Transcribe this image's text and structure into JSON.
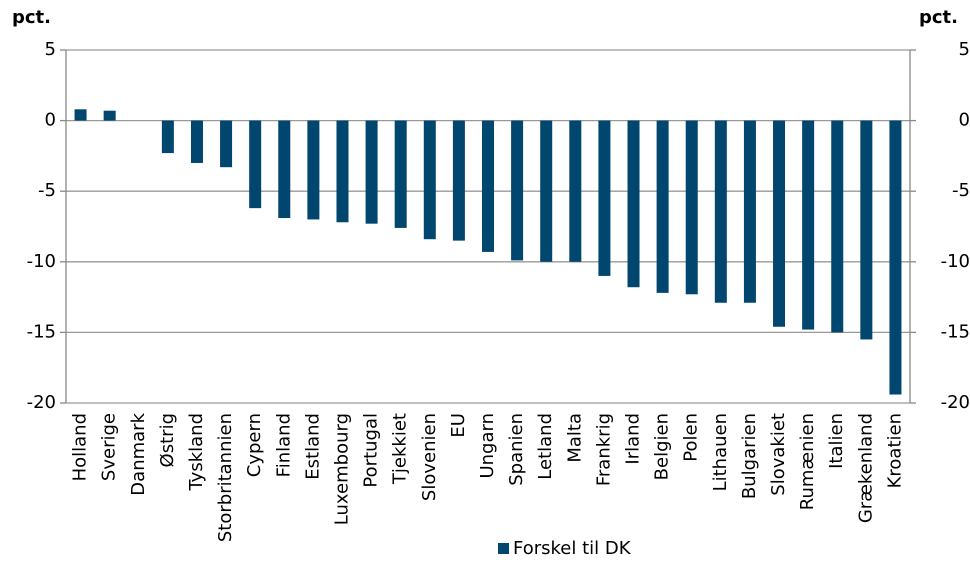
{
  "chart_data": {
    "type": "bar",
    "y_label": "pct.",
    "y2_label": "pct.",
    "categories": [
      "Holland",
      "Sverige",
      "Danmark",
      "Østrig",
      "Tyskland",
      "Storbritannien",
      "Cypern",
      "Finland",
      "Estland",
      "Luxembourg",
      "Portugal",
      "Tjekkiet",
      "Slovenien",
      "EU",
      "Ungarn",
      "Spanien",
      "Letland",
      "Malta",
      "Frankrig",
      "Irland",
      "Belgien",
      "Polen",
      "Lithauen",
      "Bulgarien",
      "Slovakiet",
      "Rumænien",
      "Italien",
      "Grækenland",
      "Kroatien"
    ],
    "series": [
      {
        "name": "Forskel til DK",
        "color": "#00466e",
        "values": [
          0.8,
          0.7,
          0,
          -2.3,
          -3.0,
          -3.3,
          -6.2,
          -6.9,
          -7.0,
          -7.2,
          -7.3,
          -7.6,
          -8.4,
          -8.5,
          -9.3,
          -9.9,
          -10.0,
          -10.0,
          -11.0,
          -11.8,
          -12.2,
          -12.3,
          -12.9,
          -12.9,
          -14.6,
          -14.8,
          -15.0,
          -15.5,
          -19.4
        ]
      }
    ],
    "ylim": [
      -20,
      5
    ],
    "yticks": [
      -20,
      -15,
      -10,
      -5,
      0,
      5
    ],
    "y2lim": [
      -20,
      5
    ],
    "y2ticks": [
      -20,
      -15,
      -10,
      -5,
      0,
      5
    ],
    "grid": true,
    "legend": "bottom"
  }
}
